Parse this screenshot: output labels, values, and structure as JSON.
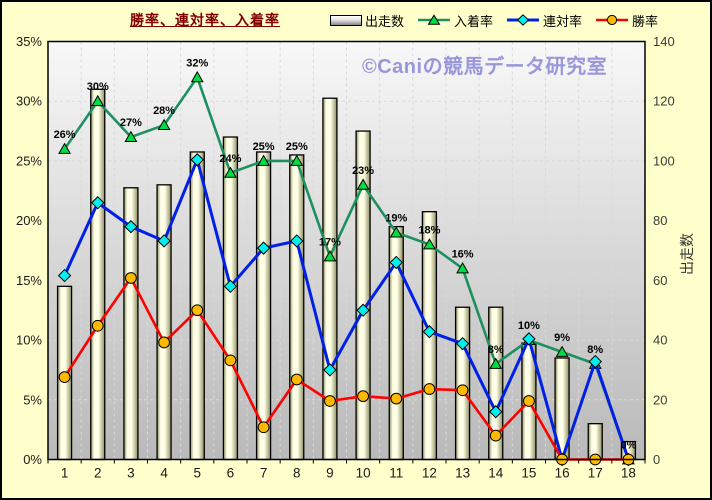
{
  "header": {
    "title": "勝率、連対率、入着率"
  },
  "watermark": "©Caniの競馬データ研究室",
  "colors": {
    "background": "#FFFFCC",
    "title": "#800000",
    "watermark": "#9897DB",
    "plot_top": "#F8F8F8",
    "plot_bottom": "#B9B9B9",
    "grid": "#D9D9D9",
    "axis_text": "#1A1A1A",
    "right_axis_text": "#3C3C3C"
  },
  "chart_data": {
    "type": "combo",
    "title": "勝率、連対率、入着率",
    "legend_position": "top",
    "grid": true,
    "categories": [
      "1",
      "2",
      "3",
      "4",
      "5",
      "6",
      "7",
      "8",
      "9",
      "10",
      "11",
      "12",
      "13",
      "14",
      "15",
      "16",
      "17",
      "18"
    ],
    "series": [
      {
        "key": "starts",
        "name": "出走数",
        "type": "bar",
        "axis": "right",
        "fill_light": "#FFFFE8",
        "fill_dark": "#8F8F62",
        "border": "#000000",
        "values": [
          58,
          124,
          91,
          92,
          103,
          108,
          103,
          102,
          121,
          110,
          78,
          83,
          51,
          51,
          39,
          34,
          12,
          6
        ]
      },
      {
        "key": "place-rate",
        "name": "入着率",
        "type": "line",
        "axis": "left",
        "marker": "triangle",
        "color": "#1E9060",
        "marker_color": "#00DD44",
        "values": [
          26,
          30,
          27,
          28,
          32,
          24,
          25,
          25,
          17,
          23,
          19,
          18,
          16,
          8,
          10,
          9,
          8,
          0
        ],
        "labels": [
          "26%",
          "30%",
          "27%",
          "28%",
          "32%",
          "24%",
          "25%",
          "25%",
          "17%",
          "23%",
          "19%",
          "18%",
          "16%",
          "8%",
          "10%",
          "9%",
          "8%",
          "0%"
        ]
      },
      {
        "key": "quinella-rate",
        "name": "連対率",
        "type": "line",
        "axis": "left",
        "marker": "diamond",
        "color": "#0020E8",
        "marker_color": "#00F0F0",
        "values": [
          15.4,
          21.5,
          19.5,
          18.3,
          25.1,
          14.5,
          17.7,
          18.3,
          7.5,
          12.5,
          16.5,
          10.7,
          9.7,
          4.0,
          10.1,
          0,
          8.2,
          0
        ]
      },
      {
        "key": "win-rate",
        "name": "勝率",
        "type": "line",
        "axis": "left",
        "marker": "circle",
        "color": "#FF0000",
        "marker_color": "#FFB900",
        "values": [
          6.9,
          11.2,
          15.2,
          9.8,
          12.5,
          8.3,
          2.7,
          6.7,
          4.9,
          5.3,
          5.1,
          5.9,
          5.8,
          2.0,
          4.9,
          0,
          0,
          0
        ]
      }
    ],
    "left_axis": {
      "min": 0,
      "max": 35,
      "step": 5,
      "suffix": "%",
      "tick_labels": [
        "0%",
        "5%",
        "10%",
        "15%",
        "20%",
        "25%",
        "30%",
        "35%"
      ]
    },
    "right_axis": {
      "min": 0,
      "max": 140,
      "step": 20,
      "title": "出走数",
      "tick_labels": [
        "0",
        "20",
        "40",
        "60",
        "80",
        "100",
        "120",
        "140"
      ]
    }
  }
}
